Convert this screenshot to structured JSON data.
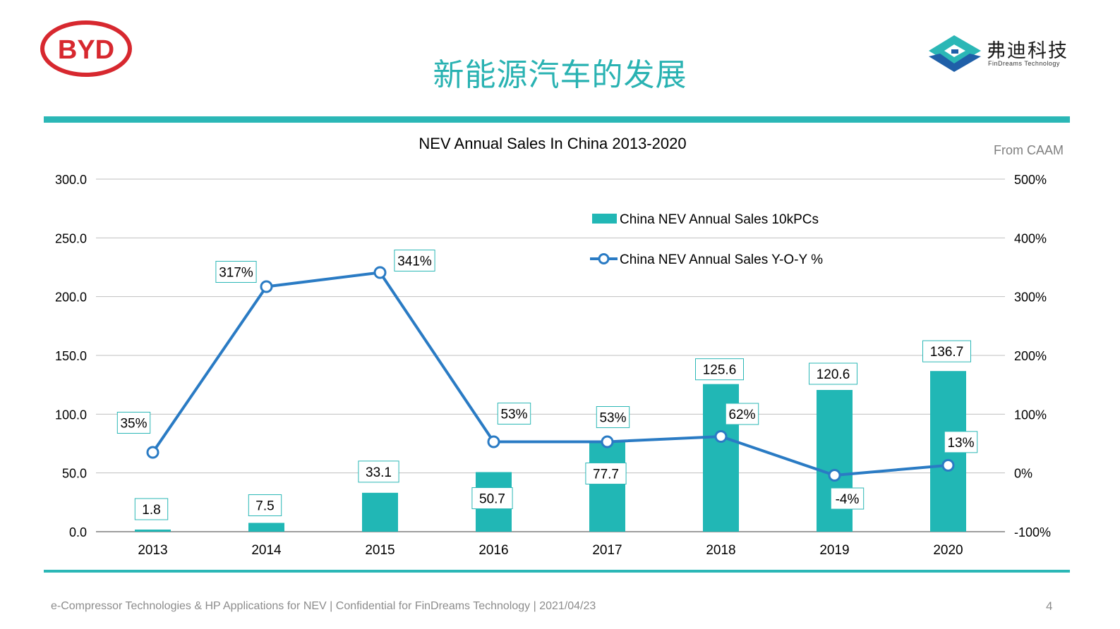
{
  "header": {
    "title": "新能源汽车的发展",
    "left_logo": {
      "text": "BYD",
      "color": "#d7282f"
    },
    "right_logo": {
      "name_cn": "弗迪科技",
      "name_en": "FinDreams Technology",
      "colors": [
        "#2bb7b6",
        "#1f5fa8"
      ]
    }
  },
  "source_note": "From CAAM",
  "chart_data": {
    "type": "bar",
    "title": "NEV Annual Sales In China 2013-2020",
    "categories": [
      "2013",
      "2014",
      "2015",
      "2016",
      "2017",
      "2018",
      "2019",
      "2020"
    ],
    "series": [
      {
        "name": "China NEV Annual Sales 10kPCs",
        "type": "bar",
        "axis": "left",
        "color": "#21b7b5",
        "values": [
          1.8,
          7.5,
          33.1,
          50.7,
          77.7,
          125.6,
          120.6,
          136.7
        ],
        "labels": [
          "1.8",
          "7.5",
          "33.1",
          "50.7",
          "77.7",
          "125.6",
          "120.6",
          "136.7"
        ]
      },
      {
        "name": "China NEV Annual Sales Y-O-Y %",
        "type": "line",
        "axis": "right",
        "color": "#2a7bc4",
        "values": [
          35,
          317,
          341,
          53,
          53,
          62,
          -4,
          13
        ],
        "labels": [
          "35%",
          "317%",
          "341%",
          "53%",
          "53%",
          "62%",
          "-4%",
          "13%"
        ]
      }
    ],
    "y_left": {
      "min": 0,
      "max": 300,
      "ticks": [
        "0.0",
        "50.0",
        "100.0",
        "150.0",
        "200.0",
        "250.0",
        "300.0"
      ]
    },
    "y_right": {
      "min": -100,
      "max": 500,
      "ticks": [
        "-100%",
        "0%",
        "100%",
        "200%",
        "300%",
        "400%",
        "500%"
      ]
    },
    "grid": true,
    "legend_position": "top-center"
  },
  "footer": {
    "text": "e-Compressor Technologies & HP Applications for NEV | Confidential for FinDreams Technology | 2021/04/23",
    "page_number": "4"
  }
}
